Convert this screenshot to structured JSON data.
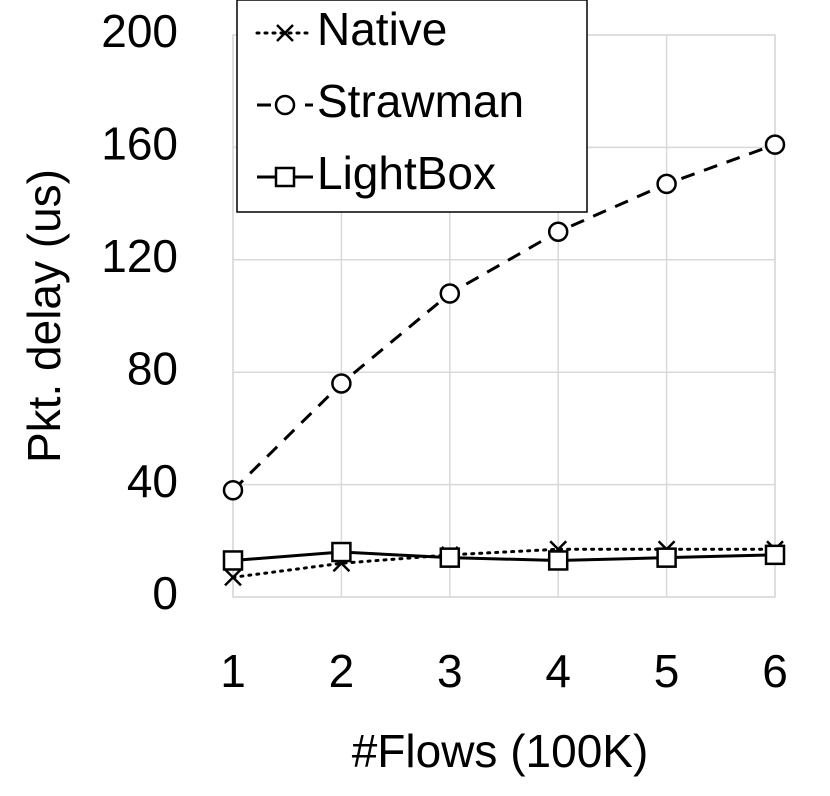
{
  "chart_data": {
    "type": "line",
    "x_label": "#Flows (100K)",
    "y_label": "Pkt. delay (us)",
    "x": [
      1,
      2,
      3,
      4,
      5,
      6
    ],
    "xlim": [
      1,
      6
    ],
    "xticks": [
      1,
      2,
      3,
      4,
      5,
      6
    ],
    "ylim": [
      0,
      200
    ],
    "yticks": [
      0,
      40,
      80,
      120,
      160,
      200
    ],
    "grid": true,
    "legend": "upper left",
    "series": [
      {
        "name": "Native",
        "color": "#000000",
        "line_style": "dotted",
        "marker": "x",
        "values": [
          7,
          12,
          15,
          17,
          17,
          17
        ]
      },
      {
        "name": "Strawman",
        "color": "#000000",
        "line_style": "dashed",
        "marker": "o",
        "values": [
          38,
          76,
          108,
          130,
          147,
          161
        ]
      },
      {
        "name": "LightBox",
        "color": "#000000",
        "line_style": "solid",
        "marker": "s",
        "values": [
          13,
          16,
          14,
          13,
          14,
          15
        ]
      }
    ]
  }
}
